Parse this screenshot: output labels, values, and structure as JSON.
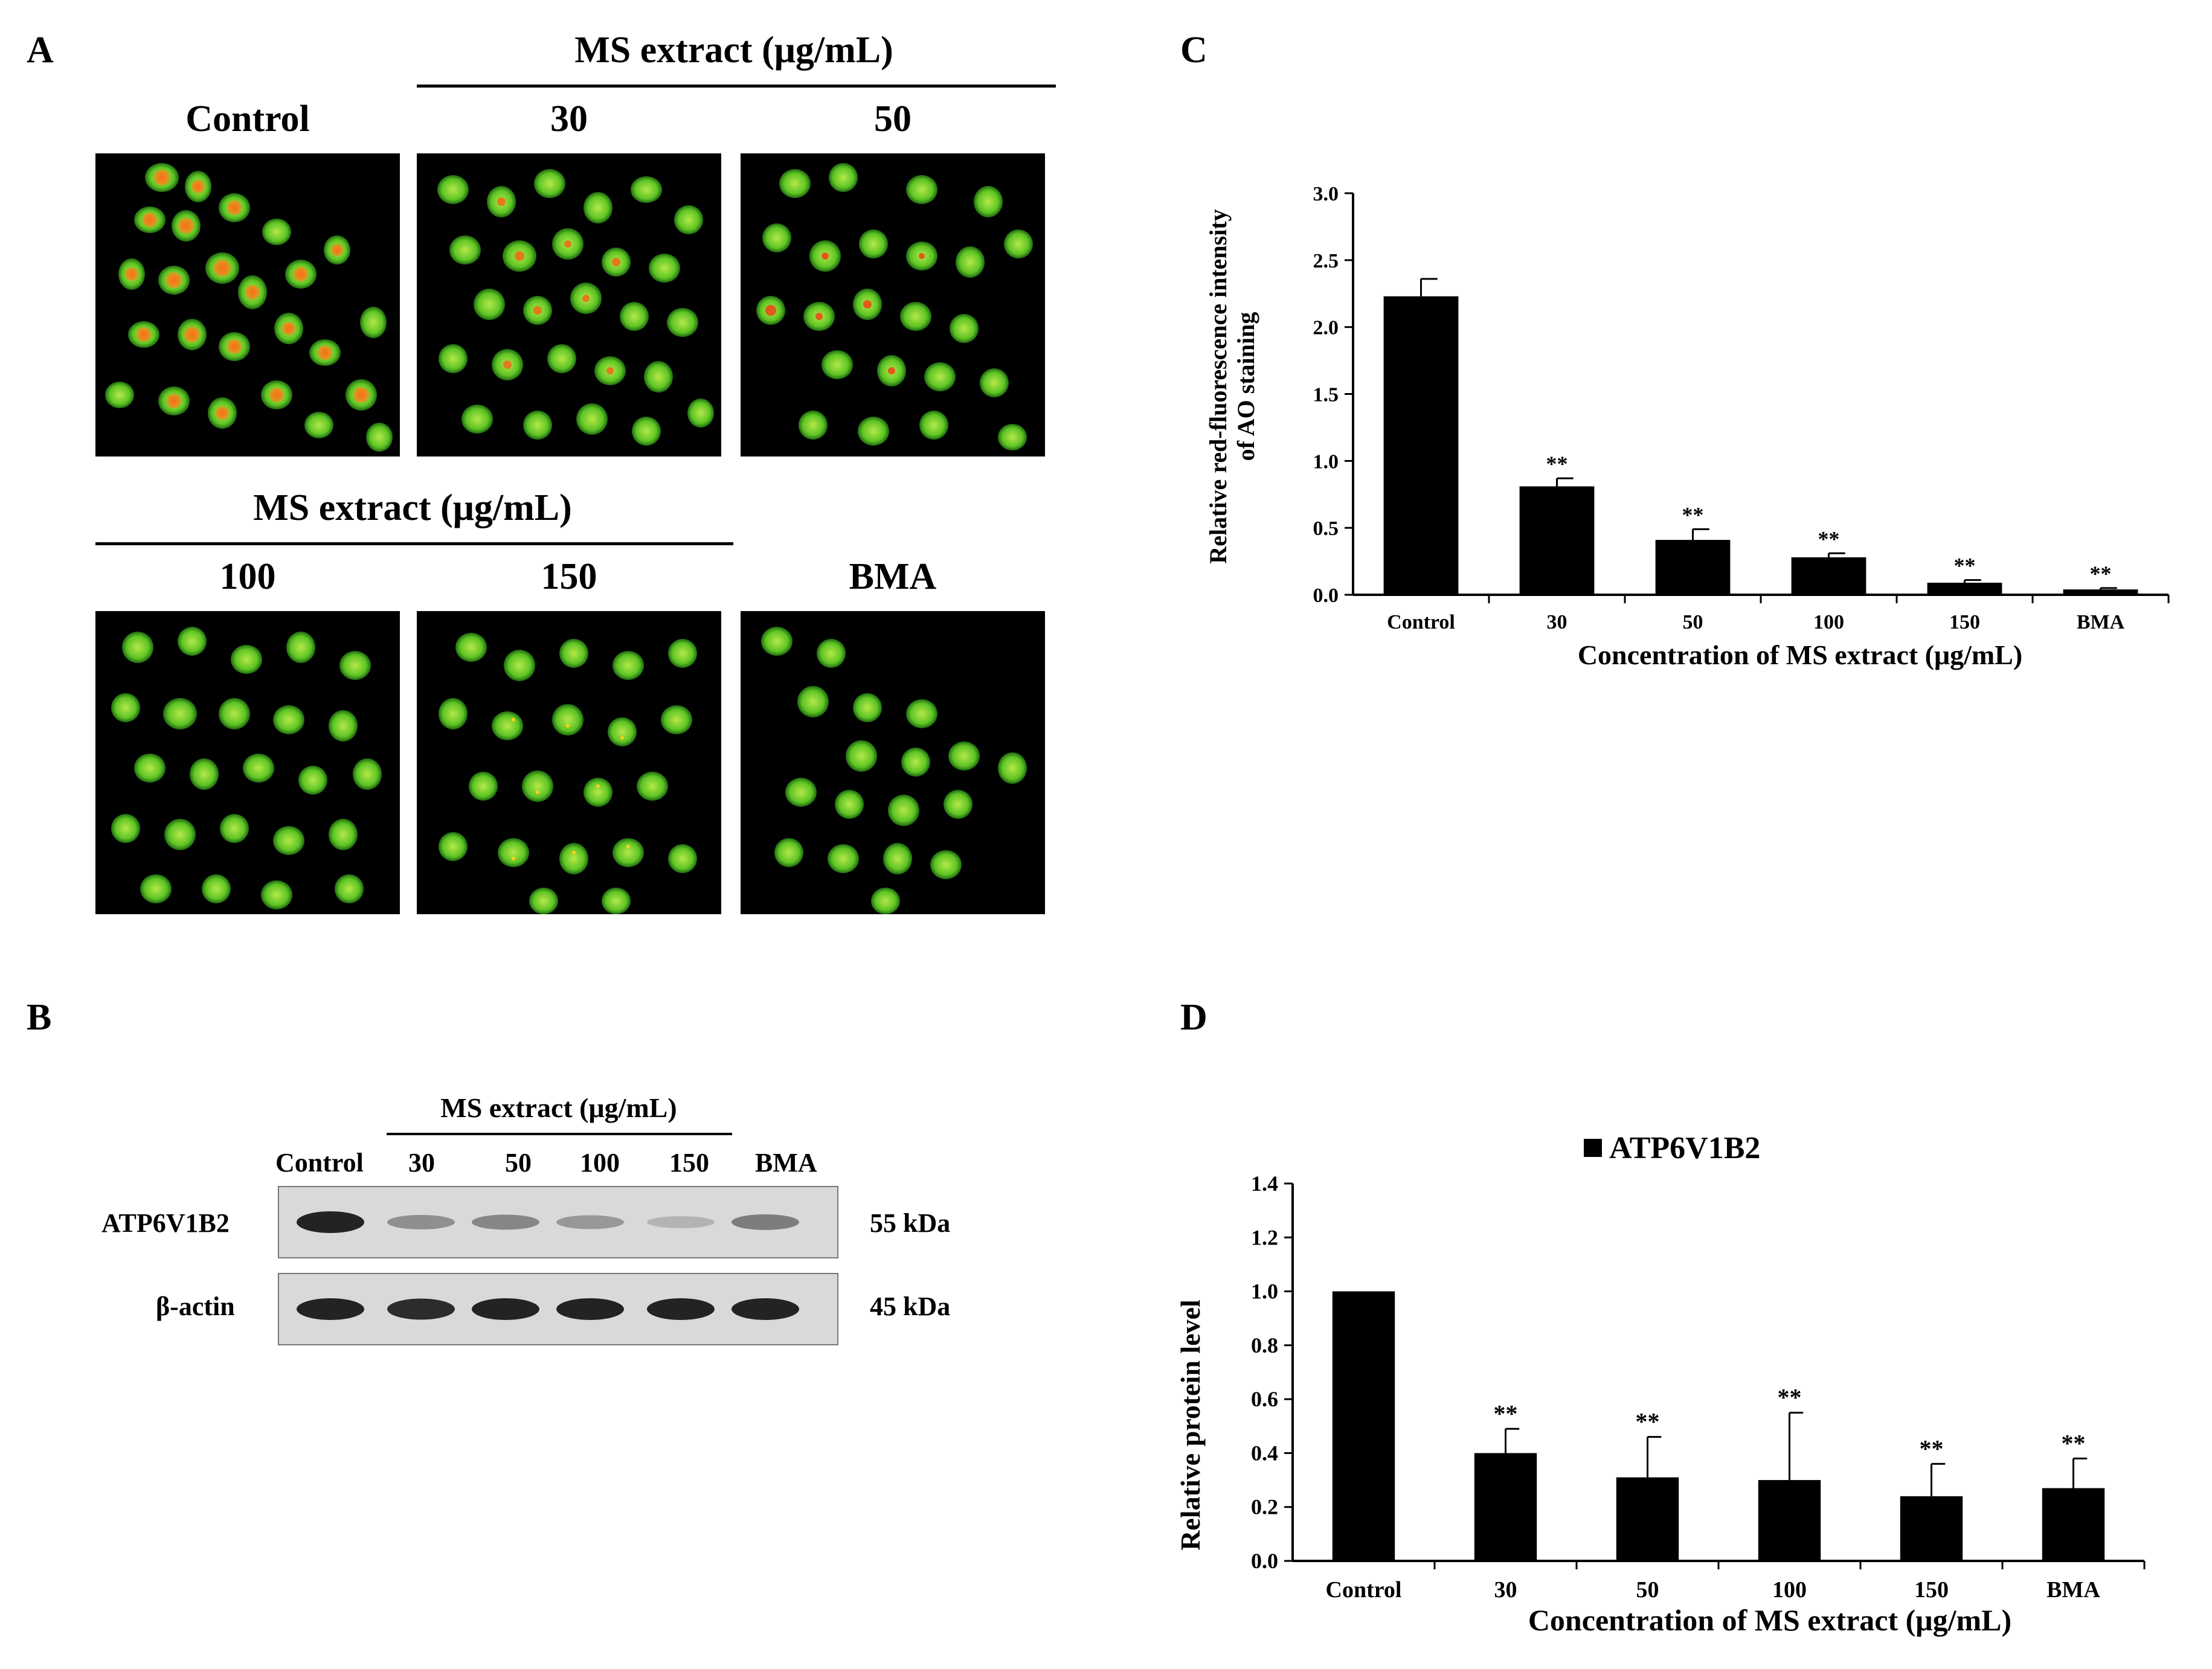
{
  "panel_a": {
    "letter": "A",
    "group_header_top": "MS extract (μg/mL)",
    "group_header_bottom": "MS extract (μg/mL)",
    "labels": {
      "control": "Control",
      "c30": "30",
      "c50": "50",
      "c100": "100",
      "c150": "150",
      "bma": "BMA"
    }
  },
  "panel_b": {
    "letter": "B",
    "group_header": "MS extract (μg/mL)",
    "lanes": [
      "Control",
      "30",
      "50",
      "100",
      "150",
      "BMA"
    ],
    "rows": [
      {
        "protein": "ATP6V1B2",
        "size": "55 kDa",
        "intensity": [
          1.0,
          0.4,
          0.45,
          0.35,
          0.2,
          0.5
        ]
      },
      {
        "protein": "β-actin",
        "size": "45 kDa",
        "intensity": [
          1.0,
          0.95,
          1.0,
          1.0,
          1.0,
          1.0
        ]
      }
    ]
  },
  "chart_data": [
    {
      "panel": "C",
      "type": "bar",
      "categories": [
        "Control",
        "30",
        "50",
        "100",
        "150",
        "BMA"
      ],
      "values": [
        2.23,
        0.81,
        0.41,
        0.28,
        0.09,
        0.04
      ],
      "errors": [
        0.13,
        0.06,
        0.08,
        0.03,
        0.02,
        0.01
      ],
      "significance": [
        "",
        "**",
        "**",
        "**",
        "**",
        "**"
      ],
      "xlabel": "Concentration of MS extract  (μg/mL)",
      "ylabel_line1": "Relative red-fluorescence  intensity",
      "ylabel_line2": "of AO staining",
      "ylim": [
        0,
        3.0
      ],
      "yticks": [
        "0.0",
        "0.5",
        "1.0",
        "1.5",
        "2.0",
        "2.5",
        "3.0"
      ],
      "bar_color": "#000000",
      "grid": false
    },
    {
      "panel": "D",
      "type": "bar",
      "categories": [
        "Control",
        "30",
        "50",
        "100",
        "150",
        "BMA"
      ],
      "values": [
        1.0,
        0.4,
        0.31,
        0.3,
        0.24,
        0.27
      ],
      "errors": [
        0.0,
        0.09,
        0.15,
        0.25,
        0.12,
        0.11
      ],
      "significance": [
        "",
        "**",
        "**",
        "**",
        "**",
        "**"
      ],
      "legend": "ATP6V1B2",
      "legend_position": "top",
      "xlabel": "Concentration of MS extract  (μg/mL)",
      "ylabel": "Relative protein level",
      "ylim": [
        0,
        1.4
      ],
      "yticks": [
        "0.0",
        "0.2",
        "0.4",
        "0.6",
        "0.8",
        "1.0",
        "1.2",
        "1.4"
      ],
      "bar_color": "#000000",
      "grid": false
    }
  ]
}
